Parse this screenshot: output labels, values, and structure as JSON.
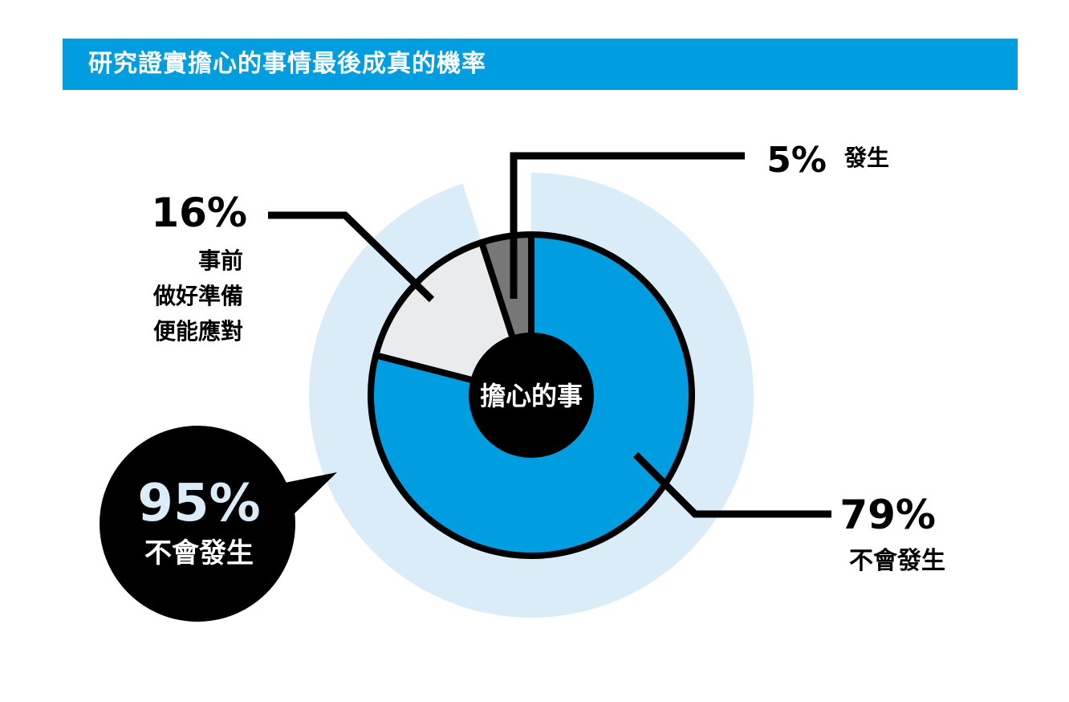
{
  "header": {
    "title": "研究證實擔心的事情最後成真的機率"
  },
  "colors": {
    "accent": "#009de0",
    "outer_ring": "#dbecf9",
    "prepared": "#e9ebec",
    "happened": "#777777",
    "outline": "#000000"
  },
  "chart_data": {
    "type": "pie",
    "variant": "donut",
    "center_label": "擔心的事",
    "slices": [
      {
        "key": "not_happen",
        "pct_label": "79%",
        "label": "不會發生",
        "value": 79,
        "color": "#009de0"
      },
      {
        "key": "prepared",
        "pct_label": "16%",
        "label_lines": [
          "事前",
          "做好準備",
          "便能應對"
        ],
        "value": 16,
        "color": "#e9ebec"
      },
      {
        "key": "happened",
        "pct_label": "5%",
        "label": "發生",
        "value": 5,
        "color": "#777777"
      }
    ],
    "outer_ring": {
      "value": 95,
      "pct_label": "95%",
      "label": "不會發生",
      "color": "#dbecf9"
    }
  }
}
